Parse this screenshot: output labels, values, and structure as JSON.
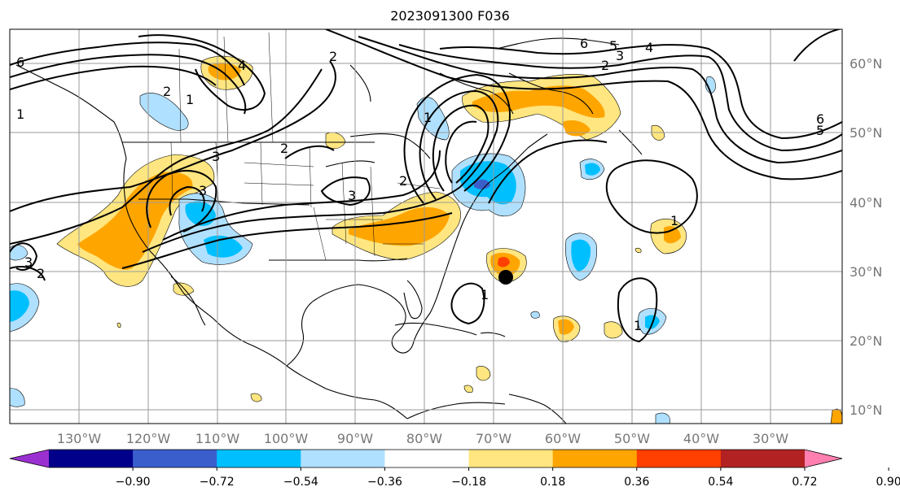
{
  "title": "2023091300 F036",
  "lon_labels": [
    "130°W",
    "120°W",
    "110°W",
    "100°W",
    "90°W",
    "80°W",
    "70°W",
    "60°W",
    "50°W",
    "40°W",
    "30°W"
  ],
  "lat_labels": [
    "60°N",
    "50°N",
    "40°N",
    "30°N",
    "20°N",
    "10°N"
  ],
  "colorbar": {
    "ticks": [
      "−0.90",
      "−0.72",
      "−0.54",
      "−0.36",
      "−0.18",
      "0.18",
      "0.36",
      "0.54",
      "0.72",
      "0.90"
    ],
    "colors": [
      "#9b30d0",
      "#00008b",
      "#3a5fcd",
      "#00bfff",
      "#b0e0ff",
      "#ffffff",
      "#ffe680",
      "#ffa500",
      "#ff4000",
      "#b22222",
      "#ff80b0"
    ]
  },
  "contour_labels": [
    "6",
    "4",
    "2",
    "1",
    "3",
    "6",
    "5",
    "4",
    "2",
    "3",
    "1",
    "6",
    "5",
    "2",
    "3",
    "3",
    "2",
    "1",
    "3",
    "2",
    "1",
    "2",
    "1",
    "1"
  ],
  "marker": "storm-center-dot"
}
